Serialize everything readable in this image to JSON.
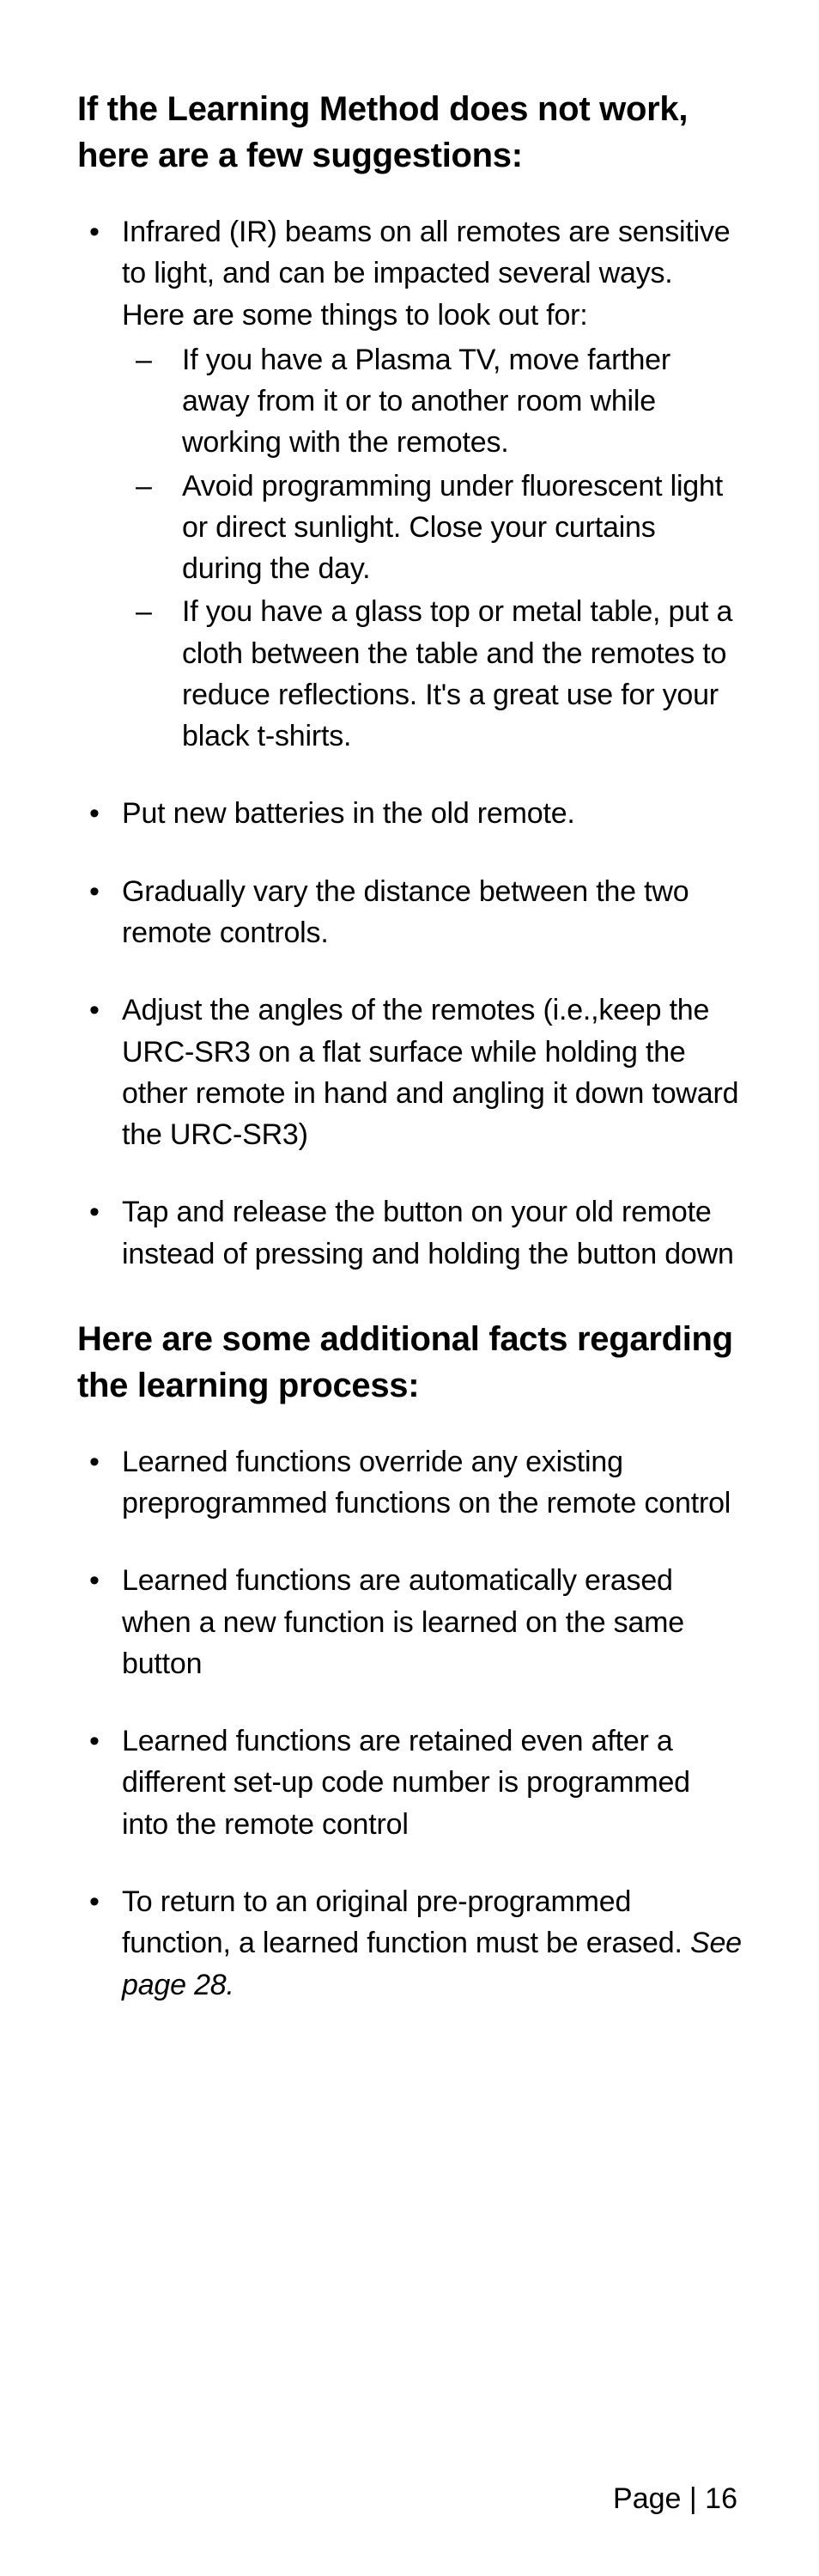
{
  "heading1": "If the Learning Method does not work, here are a few suggestions:",
  "section1": {
    "item1_intro": "Infrared (IR) beams on all remotes are sensitive to light, and can be impacted several ways. Here are some things to look out for:",
    "sub1": "If you have a Plasma TV, move farther away from it or to another room while working with the remotes.",
    "sub2": "Avoid programming under fluorescent light or direct sunlight. Close your curtains during the day.",
    "sub3": "If you have a glass top or metal table, put a cloth between the table and the remotes to reduce reflections. It's a great use for your black t-shirts.",
    "item2": "Put new batteries in the old remote.",
    "item3": "Gradually vary the distance between the two remote controls.",
    "item4": "Adjust the angles of the remotes (i.e.,keep the URC-SR3 on a flat surface while holding the other remote in hand and angling it down toward the URC-SR3)",
    "item5": "Tap and release the button on your old remote instead of pressing and holding the button down"
  },
  "heading2": "Here are some additional facts regarding the learning process:",
  "section2": {
    "item1": "Learned functions override any existing preprogrammed functions on the remote control",
    "item2": "Learned functions are automatically erased when a new function is learned on the same button",
    "item3": "Learned functions are retained even after a different set-up code number is programmed into the remote control",
    "item4_a": "To return to an original pre-programmed function, a learned function must be erased. ",
    "item4_b": "See page 28."
  },
  "footer": "Page | 16"
}
